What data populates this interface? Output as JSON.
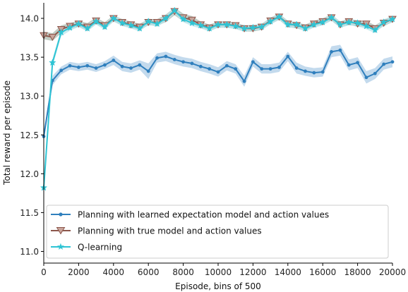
{
  "chart_data": {
    "type": "line",
    "xlabel": "Episode, bins of 500",
    "ylabel": "Total reward per episode",
    "xlim": [
      0,
      20000
    ],
    "ylim": [
      10.85,
      14.2
    ],
    "xticks": [
      0,
      2000,
      4000,
      6000,
      8000,
      10000,
      12000,
      14000,
      16000,
      18000,
      20000
    ],
    "yticks": [
      11.0,
      11.5,
      12.0,
      12.5,
      13.0,
      13.5,
      14.0
    ],
    "xtick_labels": [
      "0",
      "2000",
      "4000",
      "6000",
      "8000",
      "10000",
      "12000",
      "14000",
      "16000",
      "18000",
      "20000"
    ],
    "ytick_labels": [
      "11.0",
      "11.5",
      "12.0",
      "12.5",
      "13.0",
      "13.5",
      "14.0"
    ],
    "grid": false,
    "legend_position": "lower-center",
    "x": [
      0,
      500,
      1000,
      1500,
      2000,
      2500,
      3000,
      3500,
      4000,
      4500,
      5000,
      5500,
      6000,
      6500,
      7000,
      7500,
      8000,
      8500,
      9000,
      9500,
      10000,
      10500,
      11000,
      11500,
      12000,
      12500,
      13000,
      13500,
      14000,
      14500,
      15000,
      15500,
      16000,
      16500,
      17000,
      17500,
      18000,
      18500,
      19000,
      19500,
      20000
    ],
    "series": [
      {
        "name": "Planning with learned expectation model and action values",
        "color": "#2f7fbd",
        "band_color": "#a9cbe6",
        "marker": "circle",
        "values": [
          12.48,
          13.2,
          13.33,
          13.39,
          13.37,
          13.39,
          13.36,
          13.4,
          13.46,
          13.38,
          13.36,
          13.4,
          13.32,
          13.49,
          13.51,
          13.47,
          13.44,
          13.42,
          13.38,
          13.35,
          13.31,
          13.39,
          13.35,
          13.19,
          13.44,
          13.35,
          13.35,
          13.37,
          13.51,
          13.36,
          13.32,
          13.3,
          13.31,
          13.57,
          13.59,
          13.4,
          13.43,
          13.24,
          13.29,
          13.41,
          13.44
        ],
        "band": [
          0.06,
          0.06,
          0.05,
          0.05,
          0.05,
          0.05,
          0.05,
          0.05,
          0.06,
          0.06,
          0.06,
          0.06,
          0.1,
          0.06,
          0.06,
          0.06,
          0.06,
          0.06,
          0.06,
          0.06,
          0.06,
          0.06,
          0.06,
          0.07,
          0.06,
          0.06,
          0.06,
          0.06,
          0.06,
          0.07,
          0.06,
          0.06,
          0.06,
          0.07,
          0.07,
          0.07,
          0.07,
          0.08,
          0.07,
          0.07,
          0.07
        ]
      },
      {
        "name": "Planning with true model and action values",
        "color": "#8c564b",
        "band_color": "#a8b8ad",
        "marker": "triangle-down",
        "values": [
          13.78,
          13.76,
          13.86,
          13.9,
          13.93,
          13.89,
          13.97,
          13.91,
          14.0,
          13.95,
          13.92,
          13.89,
          13.95,
          13.95,
          14.0,
          14.09,
          14.01,
          13.98,
          13.92,
          13.88,
          13.92,
          13.92,
          13.91,
          13.87,
          13.87,
          13.89,
          13.97,
          14.02,
          13.93,
          13.91,
          13.88,
          13.93,
          13.96,
          14.01,
          13.92,
          13.96,
          13.93,
          13.93,
          13.87,
          13.94,
          13.99
        ],
        "band": [
          0.05,
          0.05,
          0.05,
          0.04,
          0.04,
          0.05,
          0.04,
          0.04,
          0.04,
          0.04,
          0.04,
          0.04,
          0.04,
          0.04,
          0.05,
          0.05,
          0.05,
          0.05,
          0.04,
          0.04,
          0.04,
          0.04,
          0.04,
          0.04,
          0.04,
          0.04,
          0.04,
          0.04,
          0.04,
          0.04,
          0.04,
          0.04,
          0.04,
          0.04,
          0.04,
          0.04,
          0.04,
          0.04,
          0.04,
          0.04,
          0.04
        ]
      },
      {
        "name": "Q-learning",
        "color": "#2ec4d4",
        "band_color": "#b7e6ec",
        "marker": "star",
        "values": [
          11.82,
          13.43,
          13.82,
          13.88,
          13.93,
          13.87,
          13.96,
          13.89,
          14.0,
          13.94,
          13.91,
          13.87,
          13.96,
          13.93,
          14.0,
          14.1,
          13.99,
          13.94,
          13.91,
          13.87,
          13.92,
          13.92,
          13.9,
          13.87,
          13.88,
          13.89,
          13.96,
          14.02,
          13.92,
          13.92,
          13.87,
          13.92,
          13.95,
          14.01,
          13.92,
          13.95,
          13.94,
          13.9,
          13.85,
          13.95,
          13.99
        ],
        "band": [
          0.05,
          0.05,
          0.05,
          0.04,
          0.04,
          0.04,
          0.04,
          0.04,
          0.04,
          0.04,
          0.04,
          0.04,
          0.04,
          0.04,
          0.04,
          0.04,
          0.04,
          0.04,
          0.04,
          0.04,
          0.04,
          0.04,
          0.04,
          0.04,
          0.04,
          0.04,
          0.04,
          0.04,
          0.04,
          0.04,
          0.04,
          0.04,
          0.04,
          0.04,
          0.04,
          0.04,
          0.04,
          0.04,
          0.04,
          0.04,
          0.04
        ]
      }
    ]
  }
}
